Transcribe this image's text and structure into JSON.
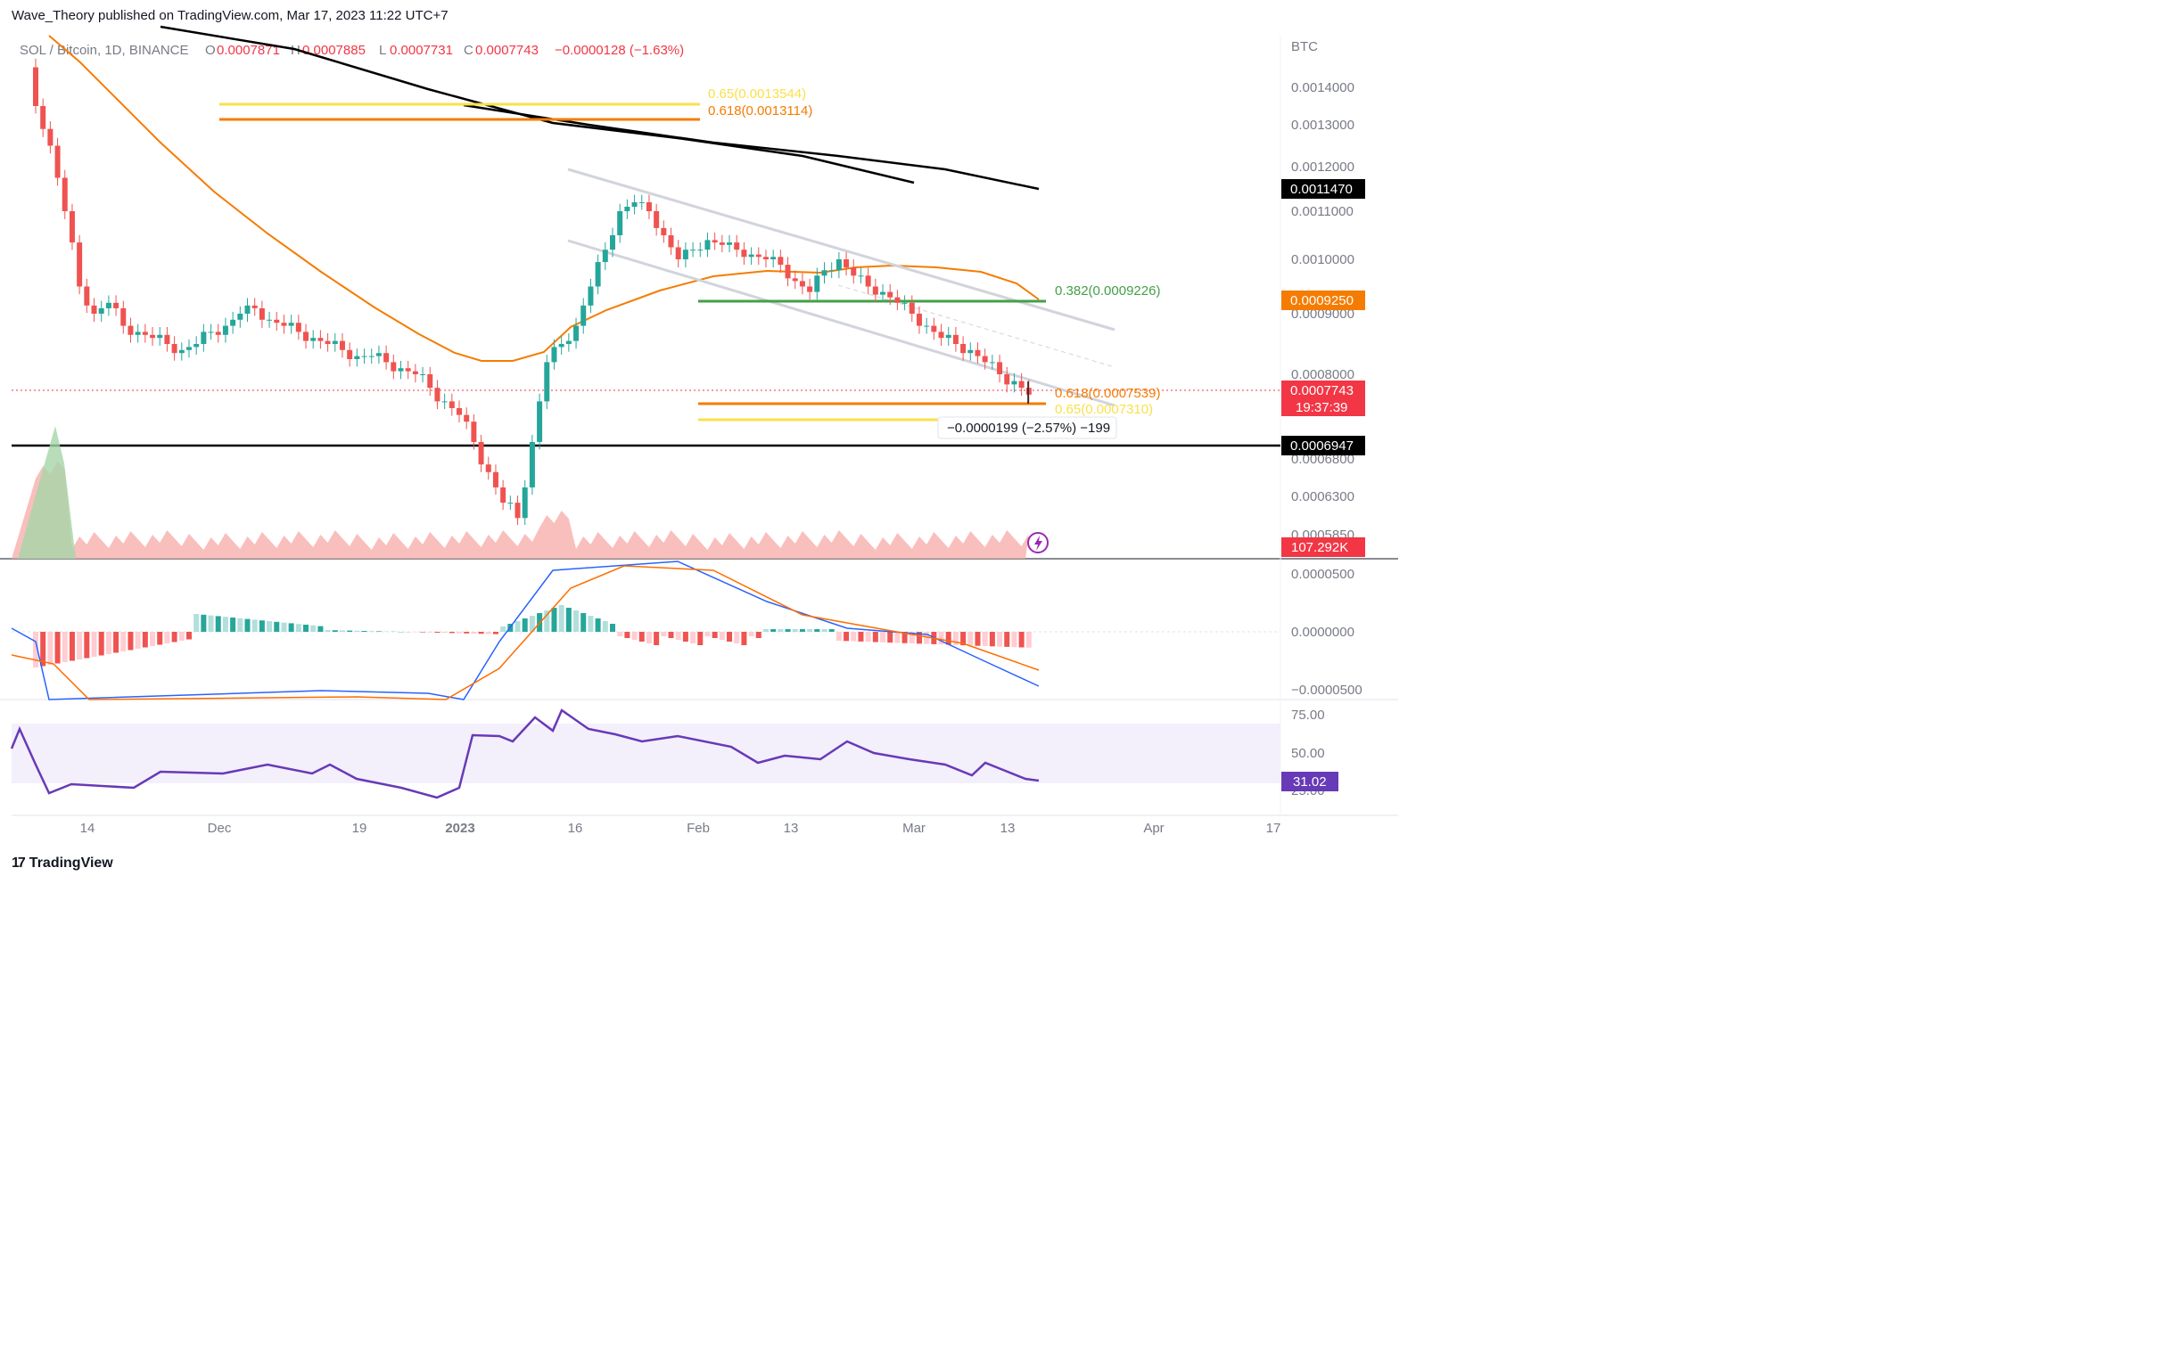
{
  "header": {
    "publisher": "Wave_Theory published on TradingView.com, Mar 17, 2023 11:22 UTC+7"
  },
  "footer": {
    "brand": "TradingView",
    "logo_text": "17"
  },
  "legend": {
    "symbol": "SOL / Bitcoin, 1D, BINANCE",
    "open_label": "O",
    "open": "0.0007871",
    "high_label": "H",
    "high": "0.0007885",
    "low_label": "L",
    "low": "0.0007731",
    "close_label": "C",
    "close": "0.0007743",
    "change": "−0.0000128 (−1.63%)"
  },
  "colors": {
    "up": "#26a69a",
    "down": "#ef5350",
    "ema50": "#f57c00",
    "ema200": "#000000",
    "fib_gold": "#f9e04b",
    "fib_orange": "#f57c00",
    "fib_green": "#43a047",
    "channel": "#d1d4dc",
    "macd": "#2962ff",
    "macd_signal": "#ff6d00",
    "rsi": "#673ab7",
    "rsi_band": "#f3effb"
  },
  "chart_data": [
    {
      "type": "candlestick",
      "pane": "price",
      "currency": "BTC",
      "y_ticks": [
        "0.0014000",
        "0.0013000",
        "0.0012000",
        "0.0011000",
        "0.0010000",
        "0.0009000",
        "0.0008000",
        "0.0006800",
        "0.0006300",
        "0.0005850"
      ],
      "x_ticks": [
        "14",
        "Dec",
        "19",
        "2023",
        "16",
        "Feb",
        "13",
        "Mar",
        "13",
        "Apr",
        "17"
      ],
      "fib_levels": [
        {
          "label": "0.65(0.0013544)",
          "value": 0.0013544,
          "color": "#f9e04b"
        },
        {
          "label": "0.618(0.0013114)",
          "value": 0.0013114,
          "color": "#f57c00"
        },
        {
          "label": "0.382(0.0009226)",
          "value": 0.0009226,
          "color": "#43a047"
        },
        {
          "label": "0.618(0.0007539)",
          "value": 0.0007539,
          "color": "#f57c00"
        },
        {
          "label": "0.65(0.0007310)",
          "value": 0.000731,
          "color": "#f9e04b"
        }
      ],
      "horizontal_line": {
        "value": 0.0006947,
        "label": "0.0006947"
      },
      "price_tags": [
        {
          "label": "0.0011470",
          "value": 0.001147,
          "color": "#000000"
        },
        {
          "label": "0.0009250",
          "value": 0.000925,
          "color": "#f57c00"
        },
        {
          "label": "0.0007743",
          "value": 0.0007743,
          "color": "#f23645"
        },
        {
          "label": "0.0006947",
          "value": 0.0006947,
          "color": "#000000"
        }
      ],
      "countdown": "19:37:39",
      "measure_label": "−0.0000199 (−2.57%) −199",
      "close_series": [
        0.00135,
        0.00125,
        0.0011,
        0.00095,
        0.0009,
        0.00092,
        0.00088,
        0.00087,
        0.00086,
        0.00085,
        0.00084,
        0.00085,
        0.00087,
        0.00088,
        0.0009,
        0.00091,
        0.00089,
        0.00088,
        0.00087,
        0.00086,
        0.00085,
        0.00084,
        0.00083,
        0.00083,
        0.00082,
        0.00081,
        0.0008,
        0.00078,
        0.00076,
        0.00074,
        0.0007,
        0.00066,
        0.00062,
        0.0006,
        0.0007,
        0.00082,
        0.00085,
        0.00088,
        0.00095,
        0.00102,
        0.0011,
        0.00112,
        0.0011,
        0.00105,
        0.001,
        0.00102,
        0.00104,
        0.00103,
        0.00102,
        0.00101,
        0.001,
        0.00099,
        0.00096,
        0.00094,
        0.00098,
        0.001,
        0.00097,
        0.00095,
        0.00094,
        0.00092,
        0.0009,
        0.00088,
        0.00086,
        0.00085,
        0.00084,
        0.00082,
        0.0008,
        0.00079,
        0.00077
      ]
    },
    {
      "type": "area",
      "pane": "volume",
      "last_label": "107.292K"
    },
    {
      "type": "line",
      "pane": "macd",
      "y_ticks": [
        "0.0000500",
        "0.0000000",
        "−0.0000500"
      ]
    },
    {
      "type": "line",
      "pane": "rsi",
      "y_ticks": [
        "75.00",
        "50.00",
        "25.00"
      ],
      "last_label": "31.02"
    }
  ]
}
